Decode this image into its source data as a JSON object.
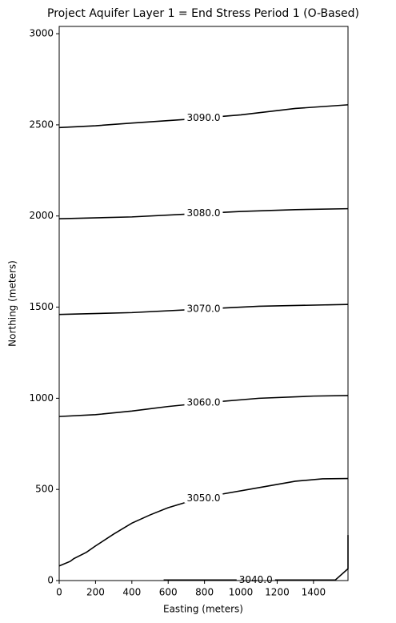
{
  "chart_data": {
    "type": "contour",
    "title": "Project Aquifer Layer 1 = End Stress Period 1 (O-Based)",
    "xlabel": "Easting (meters)",
    "ylabel": "Northing (meters)",
    "xlim": [
      0,
      1590
    ],
    "ylim": [
      0,
      3040
    ],
    "xticks": [
      0,
      200,
      400,
      600,
      800,
      1000,
      1200,
      1400
    ],
    "yticks": [
      0,
      500,
      1000,
      1500,
      2000,
      2500,
      3000
    ],
    "color": "#000000",
    "contours": [
      {
        "level": 3090,
        "level_label": "3090.0",
        "x": [
          0,
          200,
          400,
          700,
          1000,
          1300,
          1590
        ],
        "y": [
          2485,
          2495,
          2510,
          2530,
          2555,
          2590,
          2610
        ]
      },
      {
        "level": 3080,
        "level_label": "3080.0",
        "x": [
          0,
          400,
          700,
          1000,
          1300,
          1590
        ],
        "y": [
          1985,
          1995,
          2010,
          2025,
          2035,
          2040
        ]
      },
      {
        "level": 3070,
        "level_label": "3070.0",
        "x": [
          0,
          400,
          800,
          1100,
          1590
        ],
        "y": [
          1460,
          1470,
          1490,
          1505,
          1515
        ]
      },
      {
        "level": 3060,
        "level_label": "3060.0",
        "x": [
          0,
          200,
          400,
          600,
          800,
          1100,
          1400,
          1590
        ],
        "y": [
          900,
          910,
          930,
          955,
          975,
          1000,
          1012,
          1015
        ]
      },
      {
        "level": 3050,
        "level_label": "3050.0",
        "x": [
          0,
          60,
          80,
          150,
          200,
          300,
          400,
          500,
          600,
          700,
          900,
          1100,
          1300,
          1450,
          1590
        ],
        "y": [
          80,
          105,
          120,
          155,
          190,
          255,
          315,
          360,
          400,
          430,
          475,
          510,
          545,
          558,
          560
        ]
      },
      {
        "level": 3040,
        "level_label": "3040.0",
        "x": [
          575,
          1000,
          1520,
          1590,
          1590
        ],
        "y": [
          3,
          3,
          3,
          65,
          250
        ]
      }
    ]
  }
}
